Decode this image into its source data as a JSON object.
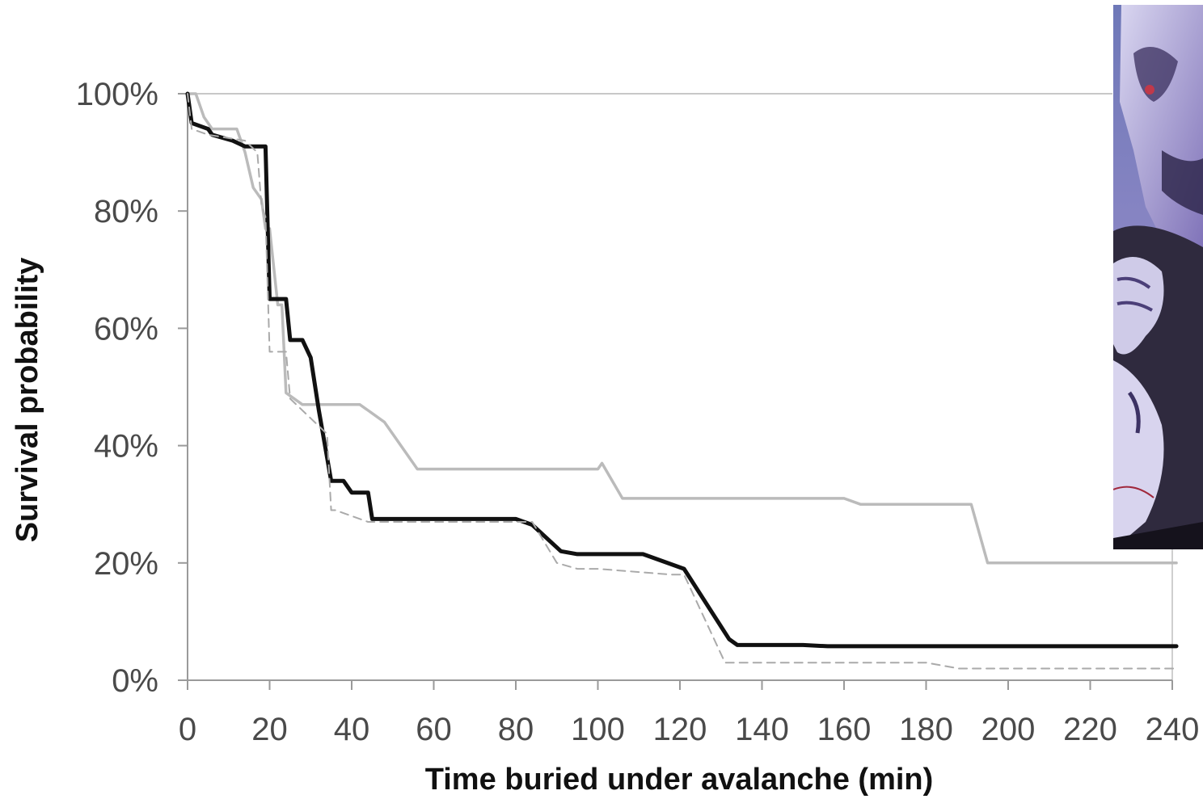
{
  "chart_data": {
    "type": "line",
    "title": "",
    "xlabel": "Time buried under avalanche (min)",
    "ylabel": "Survival probability",
    "xlim": [
      0,
      240
    ],
    "ylim": [
      0,
      100
    ],
    "x_ticks": [
      0,
      20,
      40,
      60,
      80,
      100,
      120,
      140,
      160,
      180,
      200,
      220,
      240
    ],
    "y_ticks": [
      0,
      20,
      40,
      60,
      80,
      100
    ],
    "y_tick_labels": [
      "0%",
      "20%",
      "40%",
      "60%",
      "80%",
      "100%"
    ],
    "grid": "horizontal line at 100%",
    "legend": "none",
    "series": [
      {
        "color": "#bbbbbb",
        "style": "solid",
        "x": [
          0,
          1.5,
          2,
          4,
          6,
          10,
          12,
          14,
          16,
          18,
          19,
          20,
          22,
          23,
          24,
          28,
          34,
          42,
          44,
          48,
          56,
          80,
          100,
          101,
          106,
          120,
          150,
          160,
          164,
          180,
          190,
          191,
          195,
          241
        ],
        "y": [
          100,
          100,
          100,
          96,
          94,
          94,
          94,
          90,
          84,
          82,
          77,
          77,
          64,
          64,
          49,
          47,
          47,
          47,
          46,
          44,
          36,
          36,
          36,
          37,
          31,
          31,
          31,
          31,
          30,
          30,
          30,
          30,
          20,
          20
        ]
      },
      {
        "color": "#111111",
        "style": "solid-thick",
        "x": [
          0,
          1,
          5,
          6,
          11,
          14,
          17,
          18,
          19,
          20,
          24,
          25,
          28,
          30,
          32,
          35,
          38,
          40,
          44,
          45,
          80,
          84,
          91,
          95,
          111,
          121,
          132,
          134,
          150,
          156,
          241
        ],
        "y": [
          100,
          95,
          94,
          93,
          92,
          91,
          91,
          91,
          91,
          65,
          65,
          58,
          58,
          55,
          46,
          34,
          34,
          32,
          32,
          27.5,
          27.5,
          26.5,
          22,
          21.5,
          21.5,
          19,
          7,
          6,
          6,
          5.8,
          5.8
        ]
      },
      {
        "color": "#aaaaaa",
        "style": "dashed",
        "x": [
          0,
          1,
          5,
          14,
          17,
          18,
          19,
          20,
          24,
          25,
          34,
          35,
          36,
          44,
          45,
          84,
          90,
          95,
          100,
          118,
          121,
          131,
          180,
          188,
          241
        ],
        "y": [
          100,
          94,
          93,
          92,
          90,
          81,
          79,
          56,
          56,
          48,
          42,
          29,
          29,
          27,
          27,
          27,
          20,
          19,
          19,
          18,
          18,
          3,
          3,
          2,
          2
        ]
      }
    ]
  },
  "photo": {
    "description_icon": "illustration-image"
  }
}
